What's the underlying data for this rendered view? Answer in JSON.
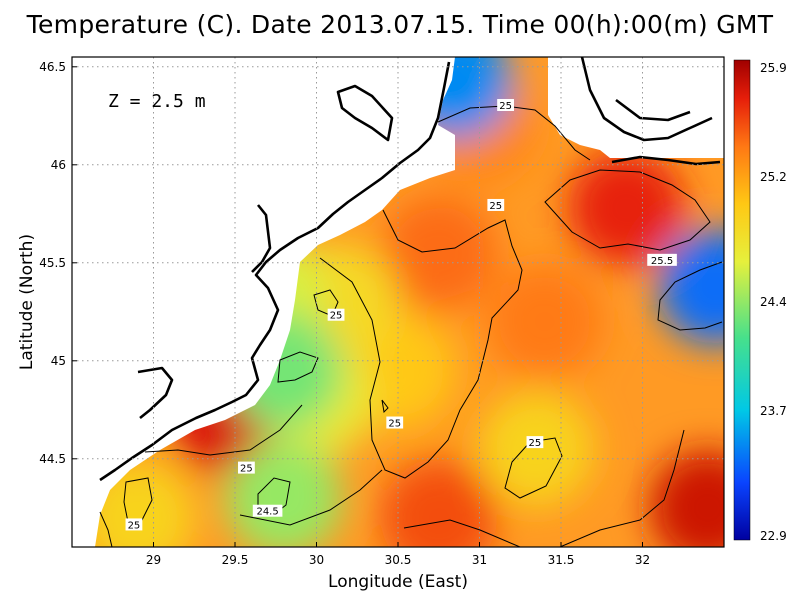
{
  "title": "Temperature (C). Date 2013.07.15. Time 00(h):00(m) GMT",
  "annotation": "Z = 2.5 m",
  "chart_data": {
    "type": "heatmap",
    "title": "Temperature (C). Date 2013.07.15. Time 00(h):00(m) GMT",
    "xlabel": "Longitude (East)",
    "ylabel": "Latitude (North)",
    "xlim": [
      28.5,
      32.5
    ],
    "ylim": [
      44.05,
      46.55
    ],
    "xticks": [
      "29",
      "29.5",
      "30",
      "30.5",
      "31",
      "31.5",
      "32"
    ],
    "yticks": [
      "44.5",
      "45",
      "45.5",
      "46",
      "46.5"
    ],
    "grid": true,
    "colorbar": {
      "min": 22.9,
      "max": 25.9,
      "ticks": [
        "25.9",
        "25.2",
        "24.4",
        "23.7",
        "22.9"
      ]
    },
    "contour_labels": [
      {
        "text": "25",
        "lon": 31.16,
        "lat": 46.3
      },
      {
        "text": "25",
        "lon": 31.1,
        "lat": 45.79
      },
      {
        "text": "25.5",
        "lon": 32.12,
        "lat": 45.51
      },
      {
        "text": "25",
        "lon": 30.12,
        "lat": 45.23
      },
      {
        "text": "25",
        "lon": 30.48,
        "lat": 44.68
      },
      {
        "text": "25",
        "lon": 31.34,
        "lat": 44.58
      },
      {
        "text": "25",
        "lon": 29.57,
        "lat": 44.45
      },
      {
        "text": "24.5",
        "lon": 29.7,
        "lat": 44.23
      },
      {
        "text": "25",
        "lon": 28.88,
        "lat": 44.16
      }
    ],
    "hotspots": [
      {
        "lon": 31.9,
        "lat": 45.78,
        "value": 25.65
      },
      {
        "lon": 32.4,
        "lat": 44.25,
        "value": 25.75
      },
      {
        "lon": 29.45,
        "lat": 44.72,
        "value": 25.7
      },
      {
        "lon": 30.75,
        "lat": 44.2,
        "value": 25.5
      },
      {
        "lon": 30.75,
        "lat": 45.55,
        "value": 25.4
      },
      {
        "lon": 31.0,
        "lat": 46.2,
        "value": 25.3
      },
      {
        "lon": 31.4,
        "lat": 45.2,
        "value": 25.35
      },
      {
        "lon": 30.5,
        "lat": 44.95,
        "value": 25.0
      },
      {
        "lon": 30.0,
        "lat": 44.8,
        "value": 24.7
      },
      {
        "lon": 30.15,
        "lat": 45.3,
        "value": 24.85
      },
      {
        "lon": 29.7,
        "lat": 45.35,
        "value": 24.6
      },
      {
        "lon": 29.8,
        "lat": 44.95,
        "value": 24.3
      },
      {
        "lon": 29.8,
        "lat": 44.3,
        "value": 24.4
      },
      {
        "lon": 28.9,
        "lat": 44.2,
        "value": 24.9
      },
      {
        "lon": 31.35,
        "lat": 44.55,
        "value": 24.9
      },
      {
        "lon": 32.45,
        "lat": 45.38,
        "value": 23.4
      },
      {
        "lon": 30.85,
        "lat": 46.43,
        "value": 23.5
      }
    ]
  }
}
